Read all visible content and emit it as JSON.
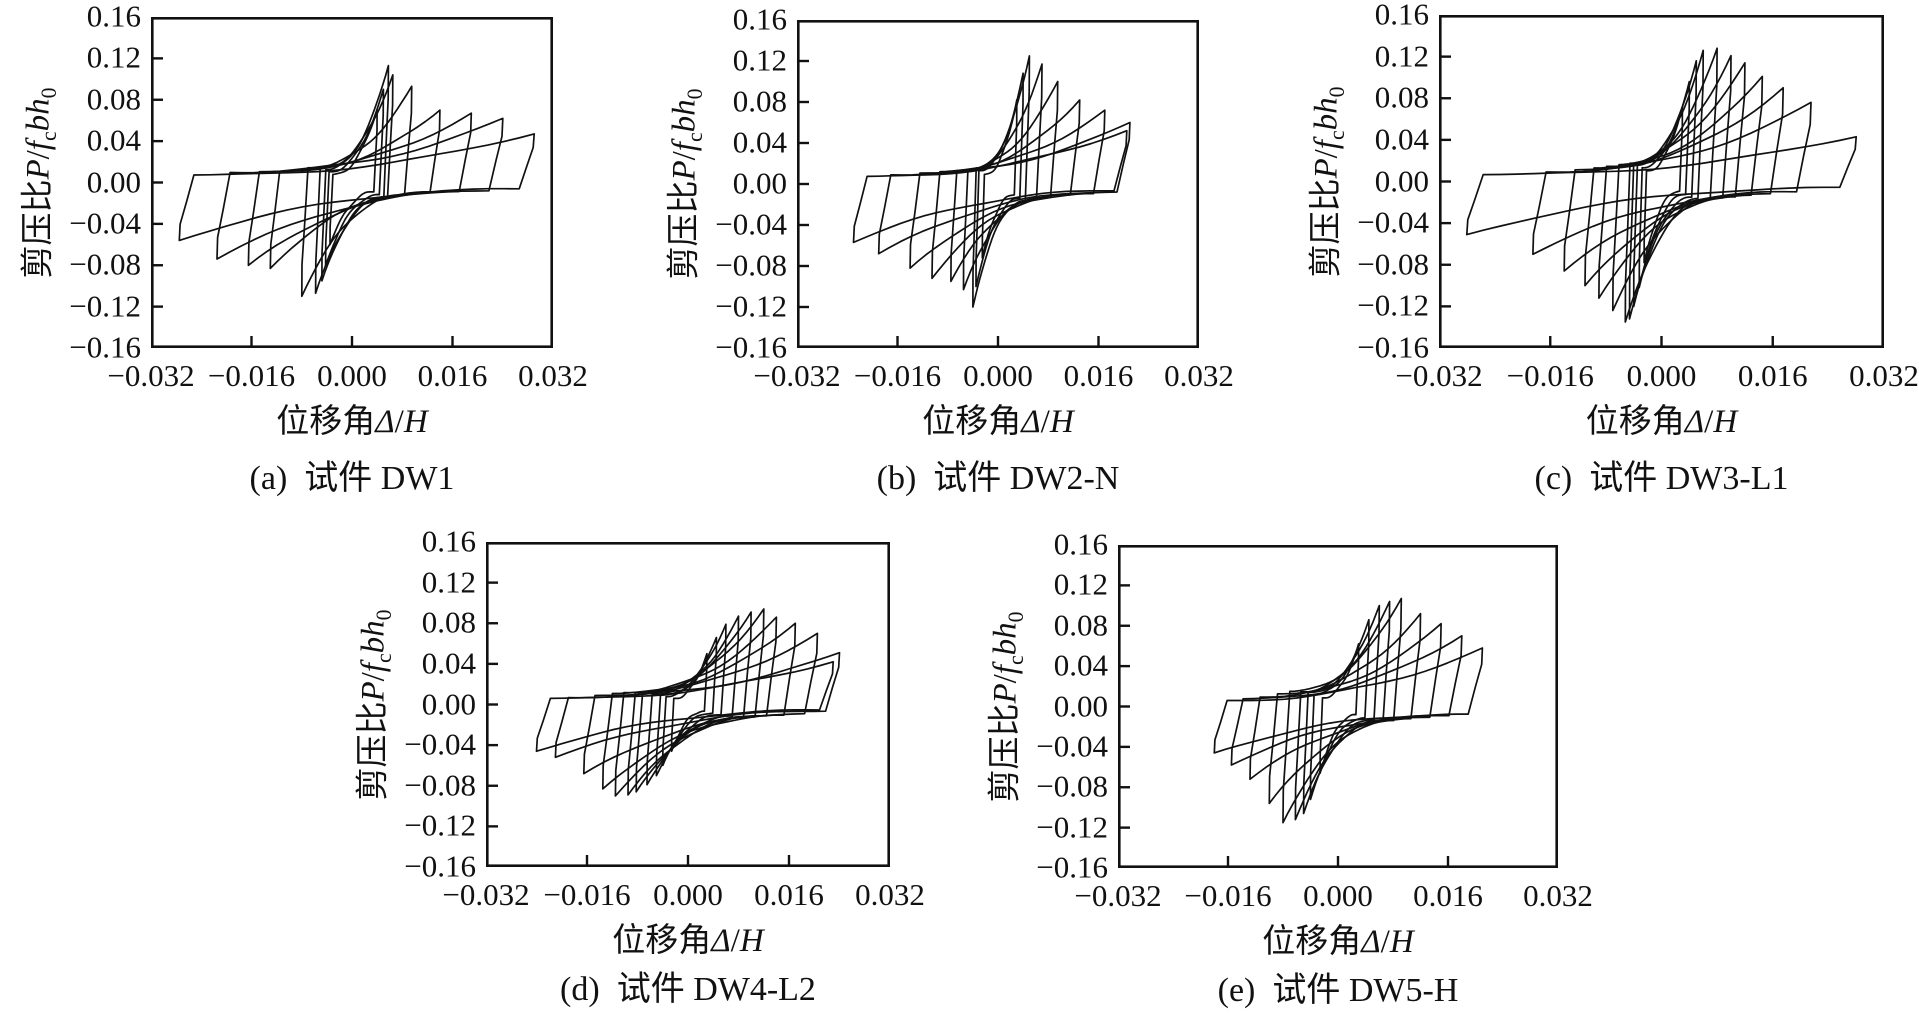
{
  "figure": {
    "background": "#ffffff",
    "stroke_color": "#111111"
  },
  "chart_data": {
    "type": "line",
    "subtype": "hysteresis-loops",
    "title": "",
    "xlabel": "位移角Δ/H",
    "ylabel": "剪压比P/fcbh0",
    "xlabel_segments": [
      {
        "t": "位移角"
      },
      {
        "t": "Δ",
        "i": true
      },
      {
        "t": "/"
      },
      {
        "t": "H",
        "i": true
      }
    ],
    "ylabel_segments": [
      {
        "t": "剪压比"
      },
      {
        "t": "P",
        "i": true
      },
      {
        "t": "/"
      },
      {
        "t": "f",
        "i": true
      },
      {
        "t": "c",
        "sub": true
      },
      {
        "t": "bh",
        "i": true
      },
      {
        "t": "0",
        "sub": true
      }
    ],
    "xlim": [
      -0.032,
      0.032
    ],
    "ylim": [
      -0.16,
      0.16
    ],
    "x_ticks": [
      "−0.032",
      "−0.016",
      "0.000",
      "0.016",
      "0.032"
    ],
    "x_tick_values": [
      -0.032,
      -0.016,
      0,
      0.016,
      0.032
    ],
    "x_tick_marks": [
      -0.016,
      0,
      0.016
    ],
    "y_ticks": [
      "0.16",
      "0.12",
      "0.08",
      "0.04",
      "0.00",
      "−0.04",
      "−0.08",
      "−0.12",
      "−0.16"
    ],
    "y_tick_values": [
      0.16,
      0.12,
      0.08,
      0.04,
      0,
      -0.04,
      -0.08,
      -0.12,
      -0.16
    ],
    "y_tick_marks": [
      0.12,
      0.08,
      0.04,
      0,
      -0.04,
      -0.08,
      -0.12
    ],
    "grid": false,
    "legend": "none",
    "cycles_format": "[peak_drift_pos, peak_load_pos, peak_drift_neg_abs, peak_load_neg_abs] per loading cycle, drift = Δ/H, load = P/fcbh0",
    "charts": [
      {
        "id": "a",
        "caption": "(a)  试件 DW1",
        "specimen": "DW1",
        "cycles": [
          [
            0.004,
            0.07,
            0.0035,
            0.06
          ],
          [
            0.005,
            0.09,
            0.0042,
            0.08
          ],
          [
            0.0058,
            0.113,
            0.0048,
            0.095
          ],
          [
            0.0065,
            0.104,
            0.0058,
            0.107
          ],
          [
            0.0095,
            0.093,
            0.008,
            0.11
          ],
          [
            0.014,
            0.07,
            0.013,
            0.083
          ],
          [
            0.019,
            0.067,
            0.0165,
            0.08
          ],
          [
            0.024,
            0.062,
            0.0215,
            0.074
          ],
          [
            0.029,
            0.047,
            0.0275,
            0.056
          ]
        ]
      },
      {
        "id": "b",
        "caption": "(b)  试件 DW2-N",
        "specimen": "DW2-N",
        "cycles": [
          [
            0.003,
            0.082,
            0.0025,
            0.072
          ],
          [
            0.004,
            0.108,
            0.0035,
            0.1
          ],
          [
            0.005,
            0.125,
            0.004,
            0.12
          ],
          [
            0.007,
            0.117,
            0.0055,
            0.103
          ],
          [
            0.0095,
            0.1,
            0.0075,
            0.095
          ],
          [
            0.013,
            0.082,
            0.0105,
            0.092
          ],
          [
            0.017,
            0.072,
            0.014,
            0.082
          ],
          [
            0.021,
            0.06,
            0.019,
            0.068
          ],
          [
            0.0205,
            0.052,
            0.023,
            0.057
          ]
        ]
      },
      {
        "id": "c",
        "caption": "(c)  试件 DW3-L1",
        "specimen": "DW3-L1",
        "cycles": [
          [
            0.003,
            0.072,
            0.0025,
            0.078
          ],
          [
            0.004,
            0.096,
            0.0032,
            0.102
          ],
          [
            0.005,
            0.116,
            0.004,
            0.12
          ],
          [
            0.006,
            0.126,
            0.0046,
            0.132
          ],
          [
            0.008,
            0.128,
            0.0052,
            0.135
          ],
          [
            0.01,
            0.121,
            0.007,
            0.124
          ],
          [
            0.012,
            0.114,
            0.009,
            0.112
          ],
          [
            0.0145,
            0.101,
            0.011,
            0.1
          ],
          [
            0.0175,
            0.09,
            0.014,
            0.086
          ],
          [
            0.0215,
            0.076,
            0.0185,
            0.07
          ],
          [
            0.028,
            0.043,
            0.028,
            0.051
          ]
        ]
      },
      {
        "id": "d",
        "caption": "(d)  试件 DW4-L2",
        "specimen": "DW4-L2",
        "cycles": [
          [
            0.003,
            0.05,
            0.0026,
            0.046
          ],
          [
            0.0045,
            0.066,
            0.004,
            0.06
          ],
          [
            0.006,
            0.079,
            0.005,
            0.07
          ],
          [
            0.008,
            0.087,
            0.0065,
            0.079
          ],
          [
            0.01,
            0.091,
            0.0082,
            0.086
          ],
          [
            0.012,
            0.094,
            0.0095,
            0.089
          ],
          [
            0.014,
            0.086,
            0.0115,
            0.09
          ],
          [
            0.017,
            0.08,
            0.0135,
            0.083
          ],
          [
            0.0205,
            0.07,
            0.0165,
            0.068
          ],
          [
            0.024,
            0.051,
            0.021,
            0.052
          ],
          [
            0.023,
            0.042,
            0.024,
            0.046
          ]
        ]
      },
      {
        "id": "e",
        "caption": "(e)  试件 DW5-H",
        "specimen": "DW5-H",
        "cycles": [
          [
            0.003,
            0.062,
            0.0026,
            0.066
          ],
          [
            0.0045,
            0.086,
            0.004,
            0.092
          ],
          [
            0.006,
            0.1,
            0.005,
            0.106
          ],
          [
            0.0075,
            0.104,
            0.0062,
            0.112
          ],
          [
            0.0092,
            0.107,
            0.008,
            0.115
          ],
          [
            0.012,
            0.092,
            0.01,
            0.096
          ],
          [
            0.015,
            0.082,
            0.0128,
            0.072
          ],
          [
            0.018,
            0.07,
            0.0155,
            0.058
          ],
          [
            0.021,
            0.058,
            0.018,
            0.046
          ]
        ]
      }
    ]
  }
}
